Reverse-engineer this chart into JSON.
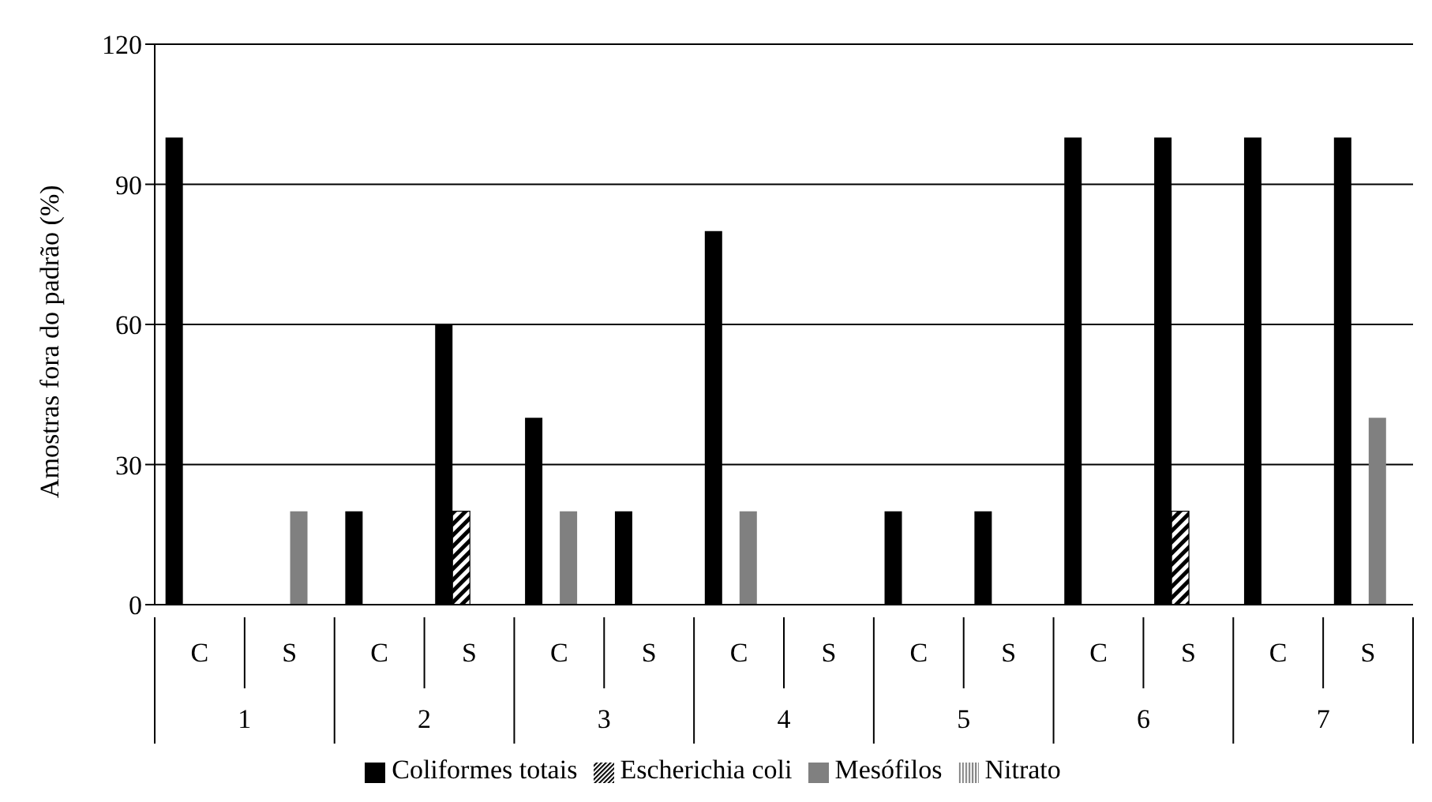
{
  "chart_data": {
    "type": "bar",
    "ylabel": "Amostras fora do padrão (%)",
    "categories": [
      "C",
      "S",
      "C",
      "S",
      "C",
      "S",
      "C",
      "S",
      "C",
      "S",
      "C",
      "S",
      "C",
      "S"
    ],
    "annotations": [
      "1",
      "2",
      "3",
      "4",
      "5",
      "6",
      "7"
    ],
    "series": [
      {
        "name": "Coliformes totais",
        "color": "#000000",
        "values": [
          100,
          0,
          20,
          60,
          40,
          20,
          80,
          0,
          20,
          20,
          100,
          100,
          100,
          100
        ]
      },
      {
        "name": "Escherichia coli",
        "color": "#000000",
        "values": [
          0,
          0,
          0,
          20,
          0,
          0,
          0,
          0,
          0,
          0,
          0,
          20,
          0,
          0
        ]
      },
      {
        "name": "Mesófilos",
        "color": "#808080",
        "values": [
          0,
          20,
          0,
          0,
          20,
          0,
          20,
          0,
          0,
          0,
          0,
          0,
          0,
          40
        ]
      },
      {
        "name": "Nitrato",
        "color": "#808080",
        "values": [
          0,
          0,
          0,
          0,
          0,
          0,
          0,
          0,
          0,
          0,
          0,
          0,
          0,
          0
        ]
      }
    ],
    "ylim": [
      0,
      120
    ],
    "yticks": [
      0,
      30,
      60,
      90,
      120
    ],
    "grid": "y",
    "legend": "bottom"
  }
}
